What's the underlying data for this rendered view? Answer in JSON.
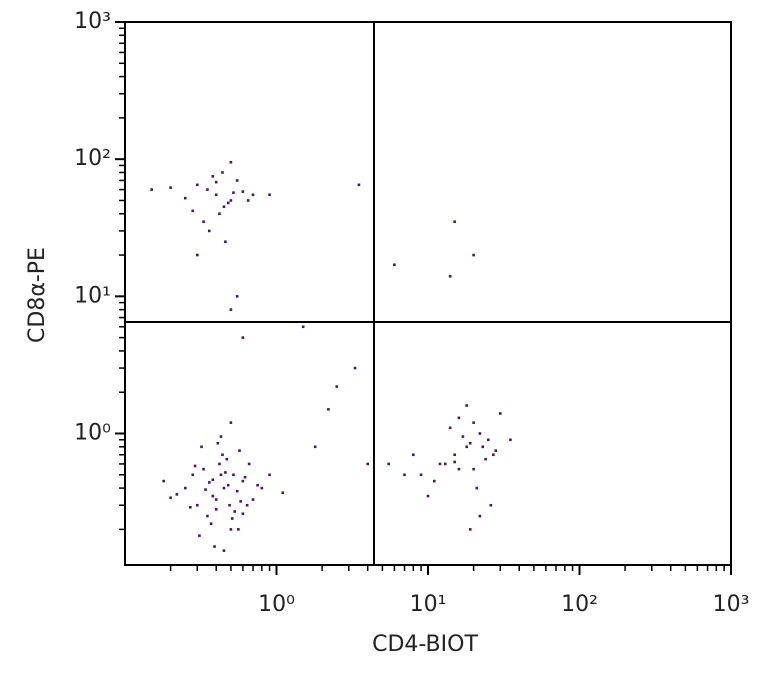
{
  "chart_data": {
    "type": "scatter",
    "x_label": "CD4-BIOT",
    "y_label": "CD8α-PE",
    "xlog": true,
    "ylog": true,
    "xlim": [
      0.1,
      1000
    ],
    "ylim": [
      0.11,
      1000
    ],
    "xticks": [
      {
        "value": 1,
        "label": "10⁰"
      },
      {
        "value": 10,
        "label": "10¹"
      },
      {
        "value": 100,
        "label": "10²"
      },
      {
        "value": 1000,
        "label": "10³"
      }
    ],
    "yticks": [
      {
        "value": 1,
        "label": "10⁰"
      },
      {
        "value": 10,
        "label": "10¹"
      },
      {
        "value": 100,
        "label": "10²"
      },
      {
        "value": 1000,
        "label": "10³"
      }
    ],
    "xminorticks": [
      0.2,
      0.3,
      0.4,
      0.5,
      0.6,
      0.7,
      0.8,
      0.9,
      2,
      3,
      4,
      5,
      6,
      7,
      8,
      9,
      20,
      30,
      40,
      50,
      60,
      70,
      80,
      90,
      200,
      300,
      400,
      500,
      600,
      700,
      800,
      900
    ],
    "yminorticks": [
      0.2,
      0.3,
      0.4,
      0.5,
      0.6,
      0.7,
      0.8,
      0.9,
      2,
      3,
      4,
      5,
      6,
      7,
      8,
      9,
      20,
      30,
      40,
      50,
      60,
      70,
      80,
      90,
      200,
      300,
      400,
      500,
      600,
      700,
      800,
      900
    ],
    "gate_x": 4.4,
    "gate_y": 6.5,
    "series": [
      {
        "color": "#4b0f82",
        "x": [
          0.45,
          0.38,
          0.52,
          0.3,
          0.6,
          0.42,
          0.35,
          0.48,
          0.55,
          0.28,
          0.7,
          0.4,
          0.33,
          0.5,
          0.62,
          0.25,
          0.44,
          0.58,
          0.37,
          0.46,
          0.8,
          0.22,
          0.41,
          0.53,
          0.36,
          0.66,
          0.31,
          0.49,
          0.43,
          0.57,
          0.2,
          0.39,
          0.75,
          0.47,
          0.34,
          0.51,
          0.29,
          0.64,
          0.43,
          0.9,
          0.18,
          0.56,
          0.4,
          0.32,
          0.6,
          0.45,
          1.1,
          0.27,
          0.5,
          0.38,
          18,
          15,
          22,
          12,
          25,
          20,
          9,
          28,
          16,
          19,
          14,
          24,
          11,
          30,
          17,
          21,
          8,
          26,
          13,
          23,
          18,
          35,
          10,
          20,
          16,
          27,
          7,
          22,
          15,
          19,
          0.4,
          0.35,
          0.5,
          0.3,
          0.45,
          0.55,
          0.25,
          0.6,
          0.42,
          0.38,
          0.2,
          0.48,
          0.7,
          0.33,
          0.44,
          0.52,
          0.28,
          0.4,
          0.65,
          0.15,
          0.36,
          0.5,
          0.9,
          0.46,
          0.3,
          0.5,
          0.55,
          1.5,
          3.3,
          3.5,
          2.2,
          4.0,
          6,
          15,
          20,
          14,
          0.6,
          1.8,
          2.5,
          5.5
        ],
        "y": [
          0.4,
          0.35,
          0.5,
          0.3,
          0.45,
          0.6,
          0.25,
          0.42,
          0.38,
          0.5,
          0.33,
          0.28,
          0.55,
          0.2,
          0.48,
          0.4,
          0.7,
          0.32,
          0.22,
          0.52,
          0.4,
          0.36,
          0.85,
          0.27,
          0.44,
          0.6,
          0.18,
          0.3,
          0.5,
          0.75,
          0.34,
          0.15,
          0.42,
          0.65,
          0.39,
          0.24,
          0.58,
          0.3,
          0.95,
          0.5,
          0.45,
          0.2,
          0.33,
          0.8,
          0.26,
          0.14,
          0.37,
          0.29,
          1.2,
          0.46,
          0.8,
          0.7,
          1.0,
          0.6,
          0.9,
          1.2,
          0.5,
          0.75,
          0.55,
          0.85,
          1.1,
          0.65,
          0.45,
          1.4,
          0.95,
          0.4,
          0.7,
          0.3,
          0.6,
          0.8,
          1.6,
          0.9,
          0.35,
          0.55,
          1.3,
          0.7,
          0.5,
          0.25,
          0.62,
          0.2,
          55,
          60,
          50,
          65,
          45,
          70,
          52,
          58,
          40,
          75,
          62,
          48,
          55,
          35,
          80,
          57,
          42,
          68,
          50,
          60,
          30,
          95,
          55,
          25,
          20,
          8,
          10,
          6,
          3,
          65,
          1.5,
          0.6,
          17,
          35,
          20,
          14,
          5,
          0.8,
          2.2,
          0.6
        ]
      }
    ]
  }
}
